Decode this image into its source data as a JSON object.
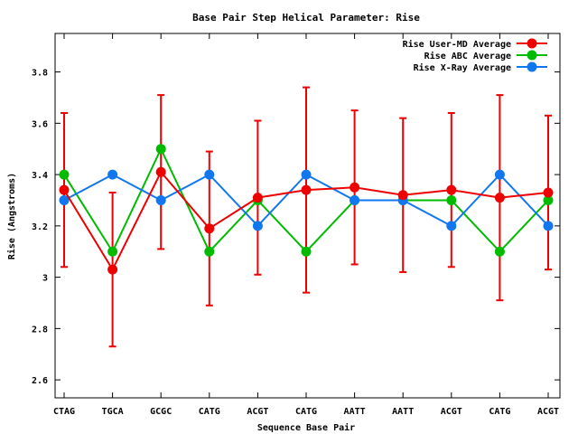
{
  "chart_data": {
    "type": "line",
    "title": "Base Pair Step Helical Parameter: Rise",
    "xlabel": "Sequence Base Pair",
    "ylabel": "Rise (Angstroms)",
    "categories": [
      "CTAG",
      "TGCA",
      "GCGC",
      "CATG",
      "ACGT",
      "CATG",
      "AATT",
      "AATT",
      "ACGT",
      "CATG",
      "ACGT"
    ],
    "ylim": [
      2.53,
      3.95
    ],
    "yticks": [
      "2.6",
      "2.8",
      "3",
      "3.2",
      "3.4",
      "3.6",
      "3.8"
    ],
    "yticks_values": [
      2.6,
      2.8,
      3.0,
      3.2,
      3.4,
      3.6,
      3.8
    ],
    "legend_position": "top-right",
    "series": [
      {
        "name": "Rise User-MD Average",
        "color": "#ee0000",
        "values": [
          3.34,
          3.03,
          3.41,
          3.19,
          3.31,
          3.34,
          3.35,
          3.32,
          3.34,
          3.31,
          3.33
        ],
        "error_low": [
          3.04,
          2.73,
          3.11,
          2.89,
          3.01,
          2.94,
          3.05,
          3.02,
          3.04,
          2.91,
          3.03
        ],
        "error_high": [
          3.64,
          3.33,
          3.71,
          3.49,
          3.61,
          3.74,
          3.65,
          3.62,
          3.64,
          3.71,
          3.63
        ]
      },
      {
        "name": "Rise ABC Average",
        "color": "#00bb00",
        "values": [
          3.4,
          3.1,
          3.5,
          3.1,
          3.3,
          3.1,
          3.3,
          3.3,
          3.3,
          3.1,
          3.3
        ]
      },
      {
        "name": "Rise X-Ray Average",
        "color": "#1177ee",
        "values": [
          3.3,
          3.4,
          3.3,
          3.4,
          3.2,
          3.4,
          3.3,
          3.3,
          3.2,
          3.4,
          3.2
        ]
      }
    ]
  }
}
